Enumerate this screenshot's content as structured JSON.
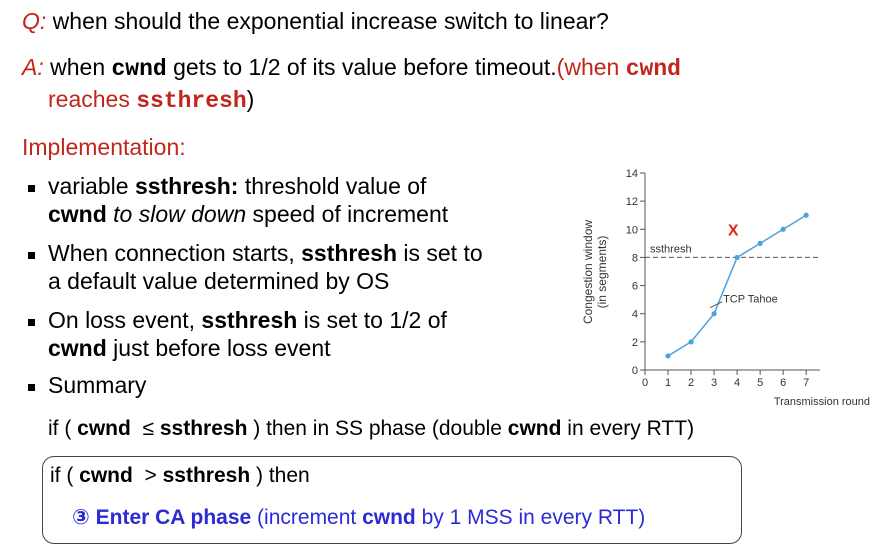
{
  "question": {
    "label": "Q:",
    "text": " when should the exponential increase switch to linear?"
  },
  "answer": {
    "label": "A:",
    "line1": [
      " when ",
      "cwnd",
      " gets to 1/2 of its value before timeout.",
      "(when ",
      "cwnd"
    ],
    "line2": [
      "reaches ",
      "ssthresh",
      ")"
    ]
  },
  "heading": "Implementation:",
  "bullets": [
    {
      "line1": [
        "variable ",
        "ssthresh:",
        " threshold value of"
      ],
      "line2": [
        "cwnd",
        " to slow down",
        " speed of increment"
      ]
    },
    {
      "line1": [
        "When connection starts, ",
        "ssthresh",
        " is set to"
      ],
      "line2": [
        "a default value determined by OS"
      ]
    },
    {
      "line1": [
        "On loss event, ",
        "ssthresh",
        " is set to 1/2 of"
      ],
      "line2": [
        "cwnd",
        " just before loss event"
      ]
    },
    {
      "line1": [
        "Summary"
      ]
    }
  ],
  "ss_rule": [
    "if ( ",
    "cwnd",
    "  ≤ ",
    "ssthresh",
    " ) then in SS phase (double ",
    "cwnd",
    " in every RTT)"
  ],
  "ca_box": {
    "line1": [
      "if ( ",
      "cwnd",
      "  > ",
      "ssthresh",
      " ) then"
    ],
    "line2": [
      "③ Enter CA phase",
      " (increment ",
      "cwnd",
      " by 1 MSS in every RTT)"
    ]
  },
  "chart_data": {
    "type": "line",
    "ylabel": [
      "Congestion window",
      "(in segments)"
    ],
    "xlabel": "Transmission round",
    "x": [
      1,
      2,
      3,
      4,
      5,
      6,
      7
    ],
    "series": [
      {
        "name": "TCP Tahoe",
        "color": "#4aa3df",
        "values": [
          1,
          2,
          4,
          8,
          9,
          10,
          11
        ]
      }
    ],
    "xlim": [
      0,
      7.6
    ],
    "ylim": [
      0,
      14
    ],
    "xticks": [
      0,
      1,
      2,
      3,
      4,
      5,
      6,
      7
    ],
    "yticks": [
      0,
      2,
      4,
      6,
      8,
      10,
      12,
      14
    ],
    "threshold": {
      "value": 8,
      "label": "ssthresh"
    },
    "annotation": {
      "text": "X",
      "x": 3.83,
      "y": 10,
      "color": "#e0261c"
    }
  }
}
